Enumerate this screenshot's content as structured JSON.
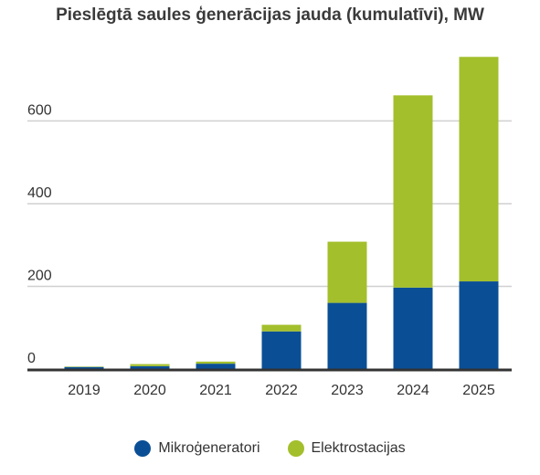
{
  "chart_data": {
    "type": "bar",
    "stacked": true,
    "title": "Pieslēgtā saules ģenerācijas jauda (kumulatīvi), MW",
    "categories": [
      "2019",
      "2020",
      "2021",
      "2022",
      "2023",
      "2024",
      "2025"
    ],
    "series": [
      {
        "name": "Mikroģeneratori",
        "color": "#0a4f95",
        "values": [
          5,
          7,
          13,
          91,
          160,
          197,
          212
        ]
      },
      {
        "name": "Elektrostacijas",
        "color": "#a3bf2c",
        "values": [
          1,
          5,
          5,
          16,
          148,
          465,
          543
        ]
      }
    ],
    "yticks": [
      0,
      200,
      400,
      600
    ],
    "ylim": [
      0,
      760
    ],
    "grid": true,
    "legend_position": "bottom"
  }
}
